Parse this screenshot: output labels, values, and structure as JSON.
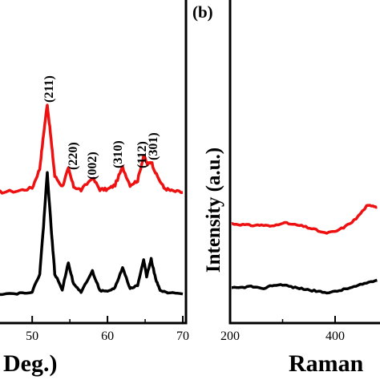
{
  "chart_data": [
    {
      "panel": "",
      "type": "line",
      "xlabel": "Deg.)",
      "ylabel": "",
      "xlim": [
        45,
        70
      ],
      "xticks": [
        "50",
        "60",
        "70"
      ],
      "yscale": "arbitrary",
      "grid": false,
      "legend": "none",
      "series": [
        {
          "color": "#ee1111",
          "x": [
            45,
            48,
            50,
            51,
            51.5,
            52,
            52.5,
            53,
            54,
            54.8,
            55.5,
            56.5,
            58,
            59,
            60,
            61,
            62,
            63,
            64,
            64.8,
            65.3,
            65.8,
            66.5,
            67.5,
            68.5,
            70
          ],
          "y": [
            1.0,
            1.02,
            1.06,
            1.32,
            1.78,
            2.2,
            1.72,
            1.22,
            1.08,
            1.32,
            1.08,
            1.03,
            1.2,
            1.04,
            1.04,
            1.1,
            1.34,
            1.1,
            1.16,
            1.5,
            1.38,
            1.42,
            1.24,
            1.06,
            1.02,
            1.0
          ]
        },
        {
          "color": "#000000",
          "x": [
            45,
            48,
            50,
            51,
            51.5,
            52,
            52.5,
            53,
            54,
            54.8,
            55.5,
            56.5,
            58,
            59,
            60,
            61,
            62,
            63,
            64,
            64.8,
            65.2,
            65.8,
            66.4,
            67,
            68,
            70
          ],
          "y": [
            0.02,
            0.03,
            0.06,
            0.4,
            1.3,
            2.32,
            1.3,
            0.4,
            0.1,
            0.62,
            0.2,
            0.06,
            0.45,
            0.08,
            0.06,
            0.14,
            0.52,
            0.12,
            0.18,
            0.68,
            0.35,
            0.68,
            0.3,
            0.08,
            0.04,
            0.02
          ]
        }
      ],
      "annotations": [
        "(211)",
        "(220)",
        "(002)",
        "(310)",
        "(112)",
        "(301)"
      ]
    },
    {
      "panel": "(b)",
      "type": "line",
      "xlabel": "Raman",
      "ylabel": "Intensity (a.u.)",
      "xlim": [
        200,
        500
      ],
      "xticks": [
        "200",
        "400"
      ],
      "yscale": "arbitrary",
      "grid": false,
      "legend": "none",
      "series": [
        {
          "color": "#ee1111",
          "x": [
            200,
            220,
            240,
            260,
            280,
            300,
            320,
            340,
            360,
            380,
            400,
            420,
            440,
            460,
            470,
            480
          ],
          "y": [
            1.12,
            1.1,
            1.08,
            1.09,
            1.06,
            1.14,
            1.1,
            1.06,
            1.0,
            0.92,
            0.95,
            1.06,
            1.22,
            1.48,
            1.5,
            1.46
          ]
        },
        {
          "color": "#000000",
          "x": [
            200,
            220,
            240,
            260,
            280,
            300,
            320,
            340,
            360,
            380,
            400,
            420,
            440,
            460,
            480
          ],
          "y": [
            0.12,
            0.13,
            0.16,
            0.1,
            0.18,
            0.2,
            0.14,
            0.1,
            0.06,
            0.02,
            0.04,
            0.1,
            0.16,
            0.24,
            0.3
          ]
        }
      ]
    }
  ]
}
